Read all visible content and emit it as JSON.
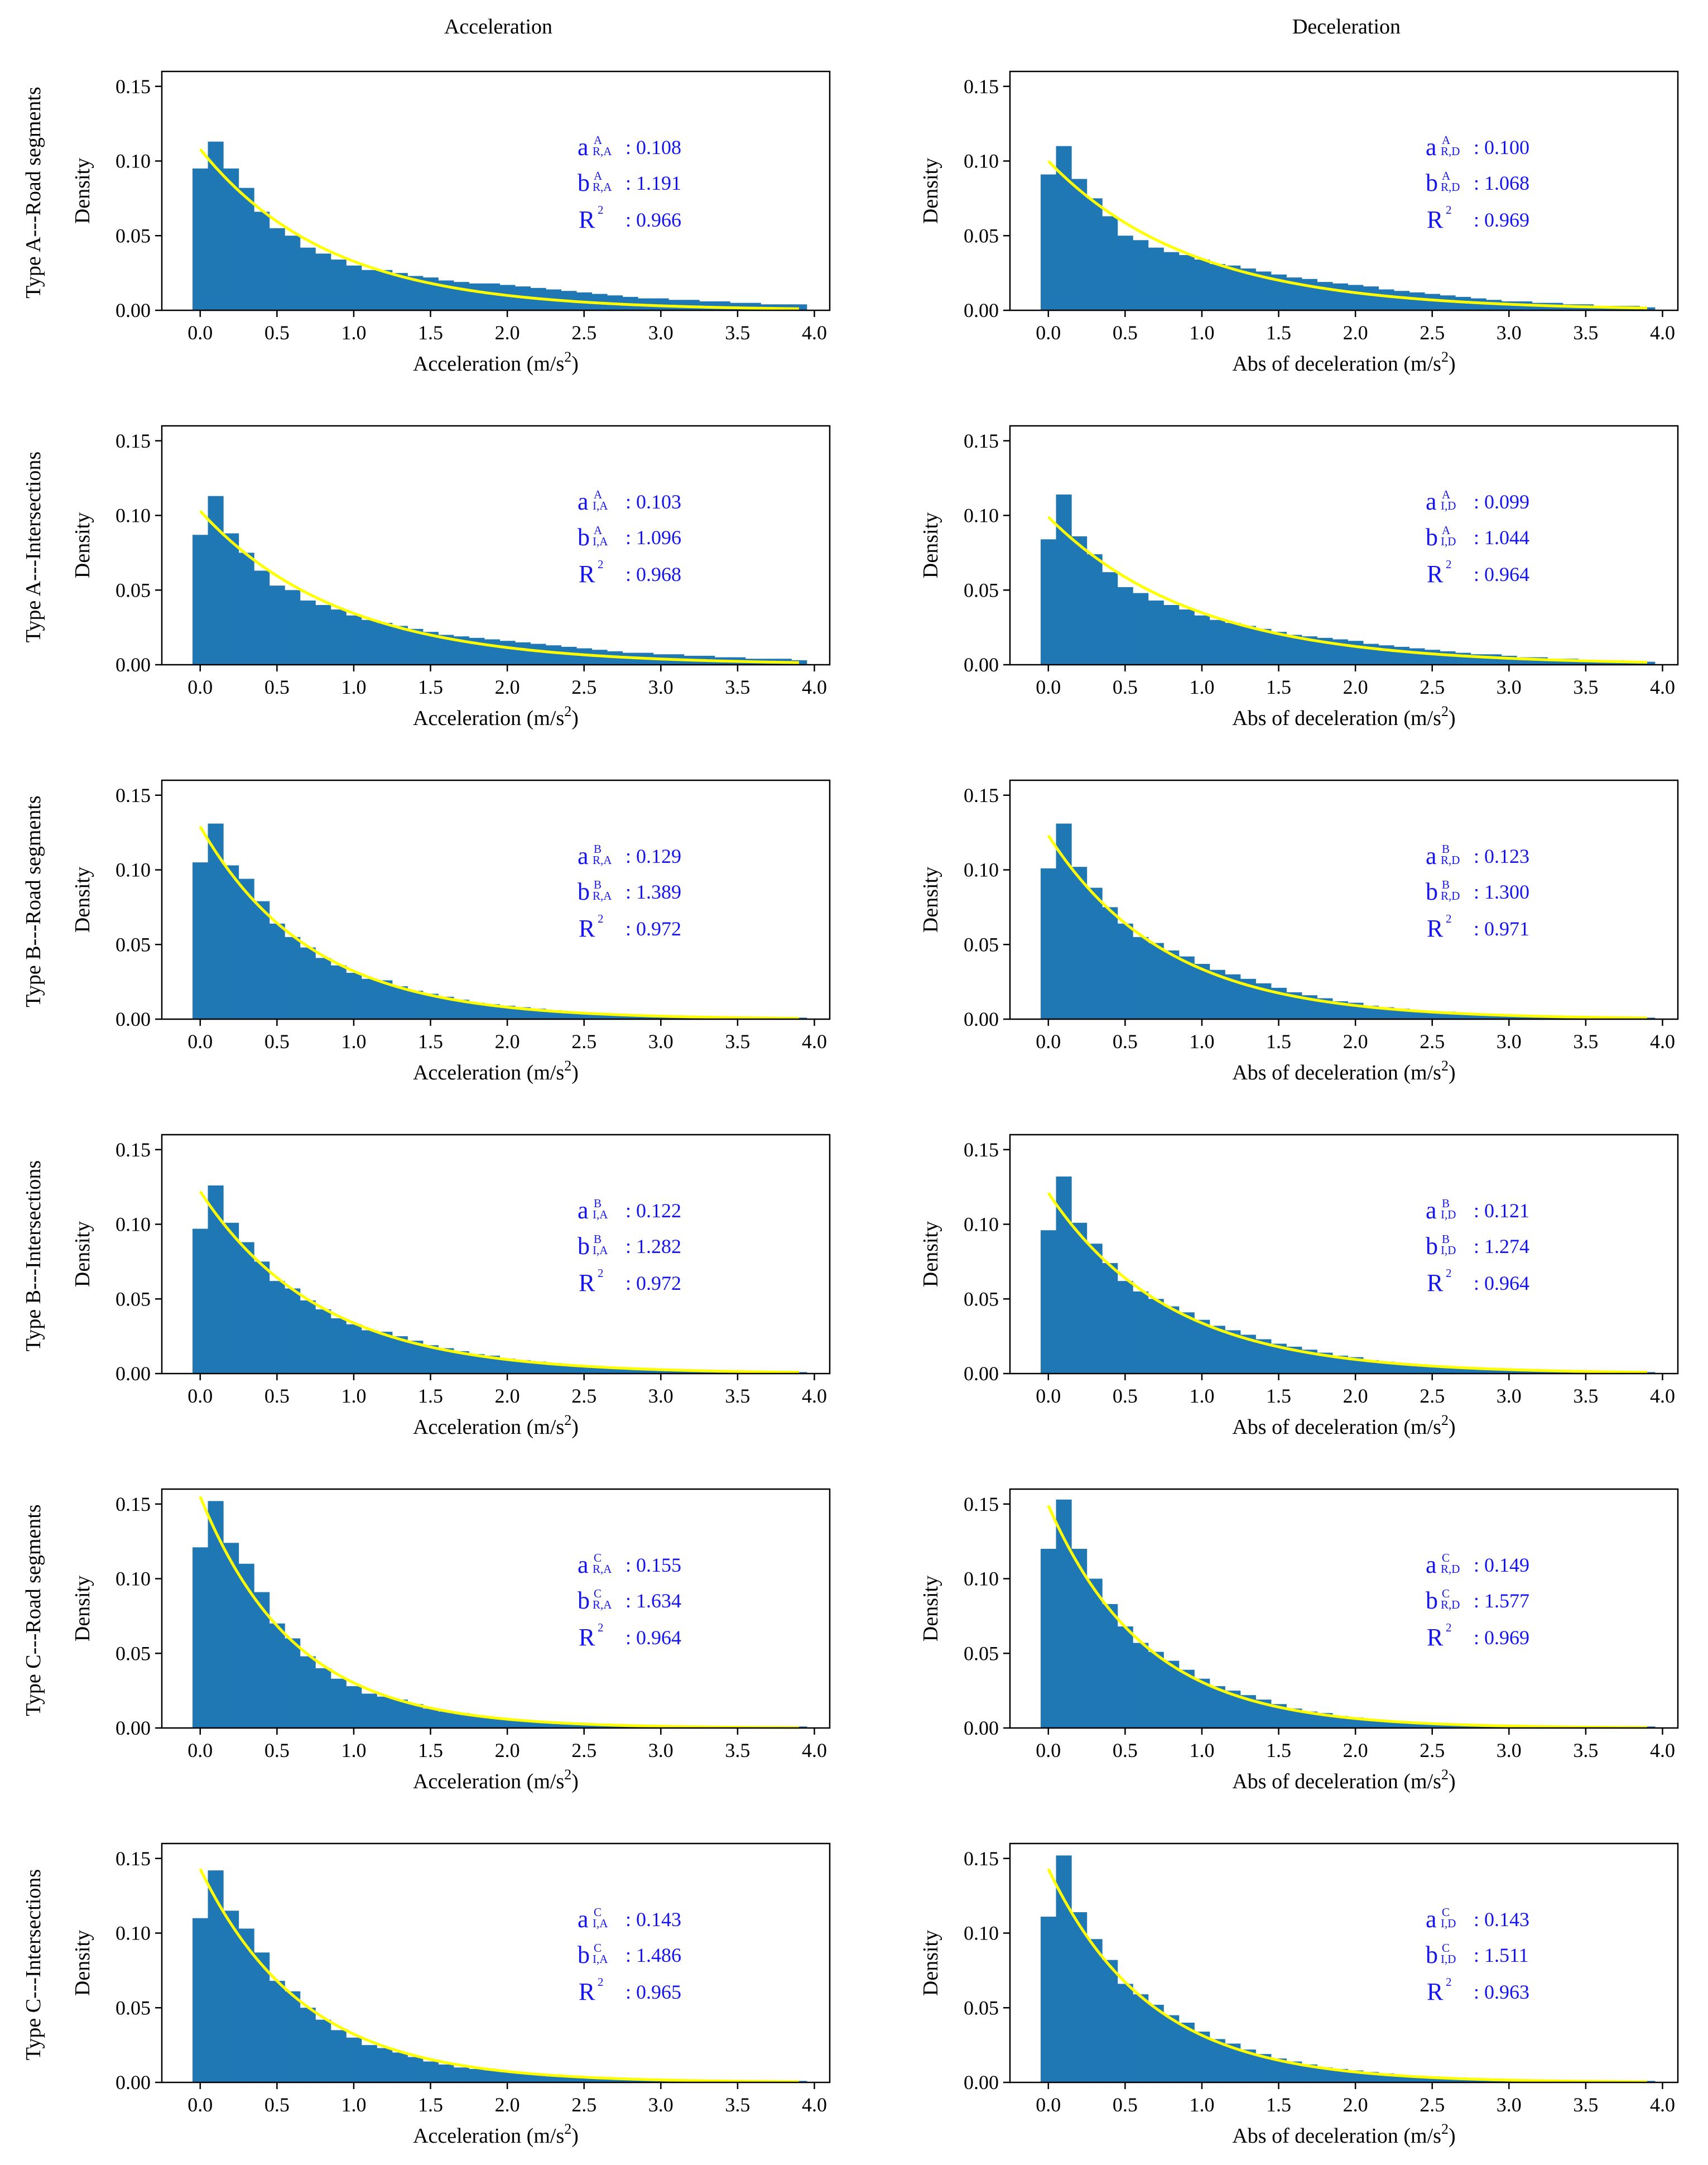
{
  "colors": {
    "bar": "#1f77b4",
    "fit_curve": "#ffff00",
    "annotation": "#1515f0",
    "axis": "#000000"
  },
  "figure": {
    "column_titles": [
      "Acceleration",
      "Deceleration"
    ],
    "row_titles": [
      "Type A---Road segments",
      "Type A---Intersections",
      "Type B---Road segments",
      "Type B---Intersections",
      "Type C---Road segments",
      "Type C---Intersections"
    ],
    "r2_label": "R",
    "r2_sup": "2"
  },
  "chart_data": [
    {
      "type": "bar",
      "row": 0,
      "col": 0,
      "title": "Type A---Road segments / Acceleration",
      "xlabel": "Acceleration (m/s",
      "xlabel_sup": "2",
      "xlabel_end": ")",
      "ylabel": "Density",
      "xlim": [
        -0.25,
        4.1
      ],
      "ylim": [
        0,
        0.16
      ],
      "xticks": [
        "0.0",
        "0.5",
        "1.0",
        "1.5",
        "2.0",
        "2.5",
        "3.0",
        "3.5",
        "4.0"
      ],
      "yticks": [
        "0.00",
        "0.05",
        "0.10",
        "0.15"
      ],
      "bin_width": 0.1,
      "bin_start": -0.05,
      "values": [
        0.095,
        0.113,
        0.095,
        0.082,
        0.066,
        0.055,
        0.05,
        0.042,
        0.038,
        0.034,
        0.03,
        0.027,
        0.027,
        0.025,
        0.023,
        0.022,
        0.02,
        0.019,
        0.018,
        0.018,
        0.017,
        0.016,
        0.015,
        0.014,
        0.013,
        0.012,
        0.011,
        0.01,
        0.009,
        0.008,
        0.008,
        0.007,
        0.007,
        0.006,
        0.006,
        0.005,
        0.005,
        0.004,
        0.004,
        0.004
      ],
      "fit": {
        "a": 0.108,
        "b": 1.191
      },
      "params": {
        "a_label": "a",
        "a_sup": "A",
        "a_sub": "R,A",
        "a_value": ": 0.108",
        "b_label": "b",
        "b_sup": "A",
        "b_sub": "R,A",
        "b_value": ": 1.191",
        "r2_value": ": 0.966"
      }
    },
    {
      "type": "bar",
      "row": 0,
      "col": 1,
      "title": "Type A---Road segments / Deceleration",
      "xlabel": "Abs of deceleration (m/s",
      "xlabel_sup": "2",
      "xlabel_end": ")",
      "ylabel": "Density",
      "xlim": [
        -0.25,
        4.1
      ],
      "ylim": [
        0,
        0.16
      ],
      "xticks": [
        "0.0",
        "0.5",
        "1.0",
        "1.5",
        "2.0",
        "2.5",
        "3.0",
        "3.5",
        "4.0"
      ],
      "yticks": [
        "0.00",
        "0.05",
        "0.10",
        "0.15"
      ],
      "bin_width": 0.1,
      "bin_start": -0.05,
      "values": [
        0.091,
        0.11,
        0.088,
        0.075,
        0.063,
        0.05,
        0.047,
        0.042,
        0.039,
        0.037,
        0.034,
        0.031,
        0.03,
        0.028,
        0.026,
        0.024,
        0.022,
        0.021,
        0.019,
        0.018,
        0.017,
        0.016,
        0.014,
        0.013,
        0.012,
        0.011,
        0.01,
        0.009,
        0.008,
        0.007,
        0.006,
        0.006,
        0.005,
        0.005,
        0.004,
        0.004,
        0.003,
        0.003,
        0.003,
        0.002
      ],
      "fit": {
        "a": 0.1,
        "b": 1.068
      },
      "params": {
        "a_label": "a",
        "a_sup": "A",
        "a_sub": "R,D",
        "a_value": ": 0.100",
        "b_label": "b",
        "b_sup": "A",
        "b_sub": "R,D",
        "b_value": ": 1.068",
        "r2_value": ": 0.969"
      }
    },
    {
      "type": "bar",
      "row": 1,
      "col": 0,
      "title": "Type A---Intersections / Acceleration",
      "xlabel": "Acceleration (m/s",
      "xlabel_sup": "2",
      "xlabel_end": ")",
      "ylabel": "Density",
      "xlim": [
        -0.25,
        4.1
      ],
      "ylim": [
        0,
        0.16
      ],
      "xticks": [
        "0.0",
        "0.5",
        "1.0",
        "1.5",
        "2.0",
        "2.5",
        "3.0",
        "3.5",
        "4.0"
      ],
      "yticks": [
        "0.00",
        "0.05",
        "0.10",
        "0.15"
      ],
      "bin_width": 0.1,
      "bin_start": -0.05,
      "values": [
        0.087,
        0.113,
        0.088,
        0.075,
        0.063,
        0.053,
        0.05,
        0.043,
        0.04,
        0.037,
        0.033,
        0.03,
        0.028,
        0.026,
        0.024,
        0.022,
        0.02,
        0.019,
        0.018,
        0.017,
        0.016,
        0.015,
        0.014,
        0.013,
        0.012,
        0.011,
        0.01,
        0.009,
        0.008,
        0.008,
        0.007,
        0.007,
        0.006,
        0.006,
        0.005,
        0.005,
        0.004,
        0.004,
        0.004,
        0.003
      ],
      "fit": {
        "a": 0.103,
        "b": 1.096
      },
      "params": {
        "a_label": "a",
        "a_sup": "A",
        "a_sub": "I,A",
        "a_value": ": 0.103",
        "b_label": "b",
        "b_sup": "A",
        "b_sub": "I,A",
        "b_value": ": 1.096",
        "r2_value": ": 0.968"
      }
    },
    {
      "type": "bar",
      "row": 1,
      "col": 1,
      "title": "Type A---Intersections / Deceleration",
      "xlabel": "Abs of deceleration (m/s",
      "xlabel_sup": "2",
      "xlabel_end": ")",
      "ylabel": "Density",
      "xlim": [
        -0.25,
        4.1
      ],
      "ylim": [
        0,
        0.16
      ],
      "xticks": [
        "0.0",
        "0.5",
        "1.0",
        "1.5",
        "2.0",
        "2.5",
        "3.0",
        "3.5",
        "4.0"
      ],
      "yticks": [
        "0.00",
        "0.05",
        "0.10",
        "0.15"
      ],
      "bin_width": 0.1,
      "bin_start": -0.05,
      "values": [
        0.084,
        0.114,
        0.086,
        0.074,
        0.062,
        0.052,
        0.048,
        0.043,
        0.04,
        0.037,
        0.033,
        0.03,
        0.028,
        0.026,
        0.024,
        0.022,
        0.02,
        0.019,
        0.018,
        0.017,
        0.016,
        0.014,
        0.013,
        0.012,
        0.011,
        0.01,
        0.009,
        0.008,
        0.007,
        0.007,
        0.006,
        0.005,
        0.005,
        0.004,
        0.004,
        0.003,
        0.003,
        0.003,
        0.002,
        0.002
      ],
      "fit": {
        "a": 0.099,
        "b": 1.044
      },
      "params": {
        "a_label": "a",
        "a_sup": "A",
        "a_sub": "I,D",
        "a_value": ": 0.099",
        "b_label": "b",
        "b_sup": "A",
        "b_sub": "I,D",
        "b_value": ": 1.044",
        "r2_value": ": 0.964"
      }
    },
    {
      "type": "bar",
      "row": 2,
      "col": 0,
      "title": "Type B---Road segments / Acceleration",
      "xlabel": "Acceleration (m/s",
      "xlabel_sup": "2",
      "xlabel_end": ")",
      "ylabel": "Density",
      "xlim": [
        -0.25,
        4.1
      ],
      "ylim": [
        0,
        0.16
      ],
      "xticks": [
        "0.0",
        "0.5",
        "1.0",
        "1.5",
        "2.0",
        "2.5",
        "3.0",
        "3.5",
        "4.0"
      ],
      "yticks": [
        "0.00",
        "0.05",
        "0.10",
        "0.15"
      ],
      "bin_width": 0.1,
      "bin_start": -0.05,
      "values": [
        0.105,
        0.131,
        0.103,
        0.094,
        0.079,
        0.064,
        0.055,
        0.048,
        0.041,
        0.036,
        0.031,
        0.027,
        0.026,
        0.022,
        0.019,
        0.017,
        0.015,
        0.013,
        0.011,
        0.01,
        0.009,
        0.008,
        0.007,
        0.006,
        0.005,
        0.004,
        0.004,
        0.003,
        0.003,
        0.002,
        0.002,
        0.002,
        0.002,
        0.001,
        0.001,
        0.001,
        0.001,
        0.001,
        0.001,
        0.001
      ],
      "fit": {
        "a": 0.129,
        "b": 1.389
      },
      "params": {
        "a_label": "a",
        "a_sup": "B",
        "a_sub": "R,A",
        "a_value": ": 0.129",
        "b_label": "b",
        "b_sup": "B",
        "b_sub": "R,A",
        "b_value": ": 1.389",
        "r2_value": ": 0.972"
      }
    },
    {
      "type": "bar",
      "row": 2,
      "col": 1,
      "title": "Type B---Road segments / Deceleration",
      "xlabel": "Abs of deceleration (m/s",
      "xlabel_sup": "2",
      "xlabel_end": ")",
      "ylabel": "Density",
      "xlim": [
        -0.25,
        4.1
      ],
      "ylim": [
        0,
        0.16
      ],
      "xticks": [
        "0.0",
        "0.5",
        "1.0",
        "1.5",
        "2.0",
        "2.5",
        "3.0",
        "3.5",
        "4.0"
      ],
      "yticks": [
        "0.00",
        "0.05",
        "0.10",
        "0.15"
      ],
      "bin_width": 0.1,
      "bin_start": -0.05,
      "values": [
        0.101,
        0.131,
        0.102,
        0.088,
        0.075,
        0.064,
        0.055,
        0.051,
        0.046,
        0.042,
        0.037,
        0.033,
        0.03,
        0.027,
        0.024,
        0.021,
        0.018,
        0.016,
        0.014,
        0.012,
        0.011,
        0.009,
        0.008,
        0.007,
        0.006,
        0.005,
        0.005,
        0.004,
        0.003,
        0.003,
        0.003,
        0.002,
        0.002,
        0.002,
        0.001,
        0.001,
        0.001,
        0.001,
        0.001,
        0.001
      ],
      "fit": {
        "a": 0.123,
        "b": 1.3
      },
      "params": {
        "a_label": "a",
        "a_sup": "B",
        "a_sub": "R,D",
        "a_value": ": 0.123",
        "b_label": "b",
        "b_sup": "B",
        "b_sub": "R,D",
        "b_value": ": 1.300",
        "r2_value": ": 0.971"
      }
    },
    {
      "type": "bar",
      "row": 3,
      "col": 0,
      "title": "Type B---Intersections / Acceleration",
      "xlabel": "Acceleration (m/s",
      "xlabel_sup": "2",
      "xlabel_end": ")",
      "ylabel": "Density",
      "xlim": [
        -0.25,
        4.1
      ],
      "ylim": [
        0,
        0.16
      ],
      "xticks": [
        "0.0",
        "0.5",
        "1.0",
        "1.5",
        "2.0",
        "2.5",
        "3.0",
        "3.5",
        "4.0"
      ],
      "yticks": [
        "0.00",
        "0.05",
        "0.10",
        "0.15"
      ],
      "bin_width": 0.1,
      "bin_start": -0.05,
      "values": [
        0.097,
        0.126,
        0.101,
        0.088,
        0.075,
        0.062,
        0.057,
        0.049,
        0.043,
        0.037,
        0.033,
        0.029,
        0.028,
        0.025,
        0.022,
        0.019,
        0.017,
        0.015,
        0.013,
        0.012,
        0.01,
        0.009,
        0.008,
        0.007,
        0.006,
        0.005,
        0.005,
        0.004,
        0.004,
        0.003,
        0.003,
        0.002,
        0.002,
        0.002,
        0.002,
        0.001,
        0.001,
        0.001,
        0.001,
        0.001
      ],
      "fit": {
        "a": 0.122,
        "b": 1.282
      },
      "params": {
        "a_label": "a",
        "a_sup": "B",
        "a_sub": "I,A",
        "a_value": ": 0.122",
        "b_label": "b",
        "b_sup": "B",
        "b_sub": "I,A",
        "b_value": ": 1.282",
        "r2_value": ": 0.972"
      }
    },
    {
      "type": "bar",
      "row": 3,
      "col": 1,
      "title": "Type B---Intersections / Deceleration",
      "xlabel": "Abs of deceleration (m/s",
      "xlabel_sup": "2",
      "xlabel_end": ")",
      "ylabel": "Density",
      "xlim": [
        -0.25,
        4.1
      ],
      "ylim": [
        0,
        0.16
      ],
      "xticks": [
        "0.0",
        "0.5",
        "1.0",
        "1.5",
        "2.0",
        "2.5",
        "3.0",
        "3.5",
        "4.0"
      ],
      "yticks": [
        "0.00",
        "0.05",
        "0.10",
        "0.15"
      ],
      "bin_width": 0.1,
      "bin_start": -0.05,
      "values": [
        0.096,
        0.132,
        0.101,
        0.087,
        0.074,
        0.062,
        0.055,
        0.05,
        0.045,
        0.041,
        0.036,
        0.032,
        0.029,
        0.026,
        0.023,
        0.02,
        0.018,
        0.016,
        0.014,
        0.012,
        0.011,
        0.009,
        0.008,
        0.007,
        0.006,
        0.005,
        0.005,
        0.004,
        0.003,
        0.003,
        0.003,
        0.002,
        0.002,
        0.002,
        0.001,
        0.001,
        0.001,
        0.001,
        0.001,
        0.001
      ],
      "fit": {
        "a": 0.121,
        "b": 1.274
      },
      "params": {
        "a_label": "a",
        "a_sup": "B",
        "a_sub": "I,D",
        "a_value": ": 0.121",
        "b_label": "b",
        "b_sup": "B",
        "b_sub": "I,D",
        "b_value": ": 1.274",
        "r2_value": ": 0.964"
      }
    },
    {
      "type": "bar",
      "row": 4,
      "col": 0,
      "title": "Type C---Road segments / Acceleration",
      "xlabel": "Acceleration (m/s",
      "xlabel_sup": "2",
      "xlabel_end": ")",
      "ylabel": "Density",
      "xlim": [
        -0.25,
        4.1
      ],
      "ylim": [
        0,
        0.16
      ],
      "xticks": [
        "0.0",
        "0.5",
        "1.0",
        "1.5",
        "2.0",
        "2.5",
        "3.0",
        "3.5",
        "4.0"
      ],
      "yticks": [
        "0.00",
        "0.05",
        "0.10",
        "0.15"
      ],
      "bin_width": 0.1,
      "bin_start": -0.05,
      "values": [
        0.121,
        0.152,
        0.124,
        0.11,
        0.091,
        0.07,
        0.06,
        0.048,
        0.04,
        0.033,
        0.028,
        0.023,
        0.021,
        0.019,
        0.016,
        0.013,
        0.011,
        0.01,
        0.008,
        0.007,
        0.006,
        0.005,
        0.004,
        0.004,
        0.003,
        0.003,
        0.002,
        0.002,
        0.002,
        0.001,
        0.001,
        0.001,
        0.001,
        0.001,
        0.001,
        0.001,
        0.001,
        0.001,
        0.001,
        0.001
      ],
      "fit": {
        "a": 0.155,
        "b": 1.634
      },
      "params": {
        "a_label": "a",
        "a_sup": "C",
        "a_sub": "R,A",
        "a_value": ": 0.155",
        "b_label": "b",
        "b_sup": "C",
        "b_sub": "R,A",
        "b_value": ": 1.634",
        "r2_value": ": 0.964"
      }
    },
    {
      "type": "bar",
      "row": 4,
      "col": 1,
      "title": "Type C---Road segments / Deceleration",
      "xlabel": "Abs of deceleration (m/s",
      "xlabel_sup": "2",
      "xlabel_end": ")",
      "ylabel": "Density",
      "xlim": [
        -0.25,
        4.1
      ],
      "ylim": [
        0,
        0.16
      ],
      "xticks": [
        "0.0",
        "0.5",
        "1.0",
        "1.5",
        "2.0",
        "2.5",
        "3.0",
        "3.5",
        "4.0"
      ],
      "yticks": [
        "0.00",
        "0.05",
        "0.10",
        "0.15"
      ],
      "bin_width": 0.1,
      "bin_start": -0.05,
      "values": [
        0.12,
        0.153,
        0.12,
        0.1,
        0.083,
        0.068,
        0.057,
        0.051,
        0.045,
        0.039,
        0.033,
        0.028,
        0.025,
        0.022,
        0.019,
        0.016,
        0.013,
        0.011,
        0.01,
        0.008,
        0.007,
        0.006,
        0.005,
        0.004,
        0.004,
        0.003,
        0.003,
        0.002,
        0.002,
        0.002,
        0.001,
        0.001,
        0.001,
        0.001,
        0.001,
        0.001,
        0.001,
        0.001,
        0.001,
        0.001
      ],
      "fit": {
        "a": 0.149,
        "b": 1.577
      },
      "params": {
        "a_label": "a",
        "a_sup": "C",
        "a_sub": "R,D",
        "a_value": ": 0.149",
        "b_label": "b",
        "b_sup": "C",
        "b_sub": "R,D",
        "b_value": ": 1.577",
        "r2_value": ": 0.969"
      }
    },
    {
      "type": "bar",
      "row": 5,
      "col": 0,
      "title": "Type C---Intersections / Acceleration",
      "xlabel": "Acceleration (m/s",
      "xlabel_sup": "2",
      "xlabel_end": ")",
      "ylabel": "Density",
      "xlim": [
        -0.25,
        4.1
      ],
      "ylim": [
        0,
        0.16
      ],
      "xticks": [
        "0.0",
        "0.5",
        "1.0",
        "1.5",
        "2.0",
        "2.5",
        "3.0",
        "3.5",
        "4.0"
      ],
      "yticks": [
        "0.00",
        "0.05",
        "0.10",
        "0.15"
      ],
      "bin_width": 0.1,
      "bin_start": -0.05,
      "values": [
        0.11,
        0.142,
        0.115,
        0.103,
        0.087,
        0.068,
        0.061,
        0.05,
        0.042,
        0.035,
        0.03,
        0.025,
        0.023,
        0.02,
        0.017,
        0.014,
        0.012,
        0.01,
        0.009,
        0.008,
        0.007,
        0.006,
        0.005,
        0.004,
        0.004,
        0.003,
        0.003,
        0.002,
        0.002,
        0.002,
        0.001,
        0.001,
        0.001,
        0.001,
        0.001,
        0.001,
        0.001,
        0.001,
        0.001,
        0.001
      ],
      "fit": {
        "a": 0.143,
        "b": 1.486
      },
      "params": {
        "a_label": "a",
        "a_sup": "C",
        "a_sub": "I,A",
        "a_value": ": 0.143",
        "b_label": "b",
        "b_sup": "C",
        "b_sub": "I,A",
        "b_value": ": 1.486",
        "r2_value": ": 0.965"
      }
    },
    {
      "type": "bar",
      "row": 5,
      "col": 1,
      "title": "Type C---Intersections / Deceleration",
      "xlabel": "Abs of deceleration (m/s",
      "xlabel_sup": "2",
      "xlabel_end": ")",
      "ylabel": "Density",
      "xlim": [
        -0.25,
        4.1
      ],
      "ylim": [
        0,
        0.16
      ],
      "xticks": [
        "0.0",
        "0.5",
        "1.0",
        "1.5",
        "2.0",
        "2.5",
        "3.0",
        "3.5",
        "4.0"
      ],
      "yticks": [
        "0.00",
        "0.05",
        "0.10",
        "0.15"
      ],
      "bin_width": 0.1,
      "bin_start": -0.05,
      "values": [
        0.111,
        0.152,
        0.114,
        0.096,
        0.082,
        0.066,
        0.059,
        0.052,
        0.045,
        0.04,
        0.034,
        0.029,
        0.026,
        0.022,
        0.019,
        0.016,
        0.014,
        0.012,
        0.01,
        0.009,
        0.008,
        0.007,
        0.006,
        0.005,
        0.004,
        0.004,
        0.003,
        0.003,
        0.002,
        0.002,
        0.002,
        0.001,
        0.001,
        0.001,
        0.001,
        0.001,
        0.001,
        0.001,
        0.001,
        0.001
      ],
      "fit": {
        "a": 0.143,
        "b": 1.511
      },
      "params": {
        "a_label": "a",
        "a_sup": "C",
        "a_sub": "I,D",
        "a_value": ": 0.143",
        "b_label": "b",
        "b_sup": "C",
        "b_sub": "I,D",
        "b_value": ": 1.511",
        "r2_value": ": 0.963"
      }
    }
  ]
}
